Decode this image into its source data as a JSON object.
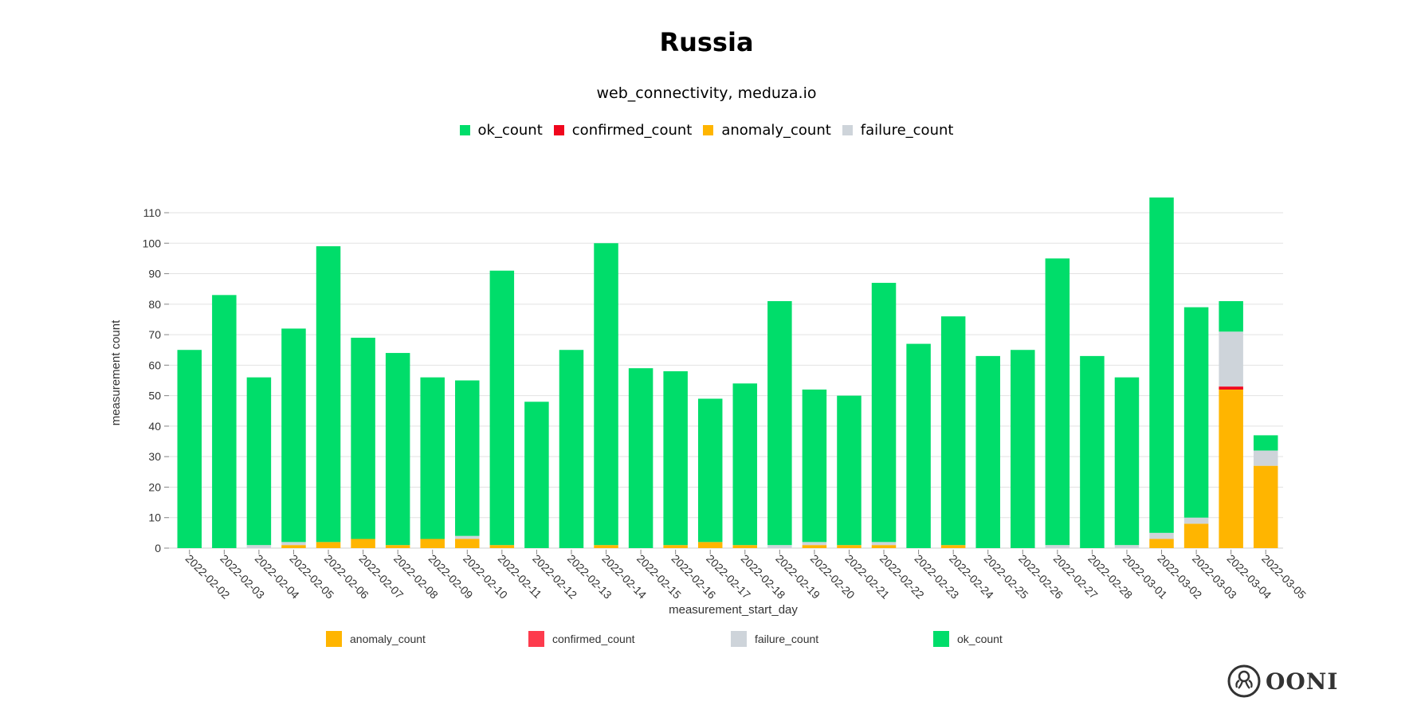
{
  "header": {
    "title": "Russia",
    "subtitle": "web_connectivity, meduza.io"
  },
  "top_legend": [
    {
      "label": "ok_count",
      "color": "#00dd6a"
    },
    {
      "label": "confirmed_count",
      "color": "#f0061d"
    },
    {
      "label": "anomaly_count",
      "color": "#ffb500"
    },
    {
      "label": "failure_count",
      "color": "#ced4da"
    }
  ],
  "logo": {
    "text": "OONI"
  },
  "chart_data": {
    "type": "bar",
    "stacked": true,
    "xlabel": "measurement_start_day",
    "ylabel": "measurement count",
    "ylim": [
      0,
      115
    ],
    "yticks": [
      0,
      10,
      20,
      30,
      40,
      50,
      60,
      70,
      80,
      90,
      100,
      110
    ],
    "grid": true,
    "legend_placement": "bottom",
    "categories": [
      "2022-02-02",
      "2022-02-03",
      "2022-02-04",
      "2022-02-05",
      "2022-02-06",
      "2022-02-07",
      "2022-02-08",
      "2022-02-09",
      "2022-02-10",
      "2022-02-11",
      "2022-02-12",
      "2022-02-13",
      "2022-02-14",
      "2022-02-15",
      "2022-02-16",
      "2022-02-17",
      "2022-02-18",
      "2022-02-19",
      "2022-02-20",
      "2022-02-21",
      "2022-02-22",
      "2022-02-23",
      "2022-02-24",
      "2022-02-25",
      "2022-02-26",
      "2022-02-27",
      "2022-02-28",
      "2022-03-01",
      "2022-03-02",
      "2022-03-03",
      "2022-03-04",
      "2022-03-05"
    ],
    "series": [
      {
        "name": "anomaly_count",
        "color": "#ffb500",
        "values": [
          0,
          0,
          0,
          1,
          2,
          3,
          1,
          3,
          3,
          1,
          0,
          0,
          1,
          0,
          1,
          2,
          1,
          0,
          1,
          1,
          1,
          0,
          1,
          0,
          0,
          0,
          0,
          0,
          3,
          8,
          52,
          27
        ]
      },
      {
        "name": "confirmed_count",
        "color": "#f0061d",
        "legend_color": "#fd3b4d",
        "values": [
          0,
          0,
          0,
          0,
          0,
          0,
          0,
          0,
          0,
          0,
          0,
          0,
          0,
          0,
          0,
          0,
          0,
          0,
          0,
          0,
          0,
          0,
          0,
          0,
          0,
          0,
          0,
          0,
          0,
          0,
          1,
          0
        ]
      },
      {
        "name": "failure_count",
        "color": "#ced4da",
        "values": [
          0,
          0,
          1,
          1,
          0,
          0,
          0,
          0,
          1,
          0,
          0,
          0,
          0,
          0,
          0,
          0,
          0,
          1,
          1,
          0,
          1,
          0,
          0,
          0,
          0,
          1,
          0,
          1,
          2,
          2,
          18,
          5
        ]
      },
      {
        "name": "ok_count",
        "color": "#00dd6a",
        "values": [
          65,
          83,
          55,
          70,
          97,
          66,
          63,
          53,
          51,
          90,
          48,
          65,
          99,
          59,
          57,
          47,
          53,
          80,
          50,
          49,
          85,
          67,
          75,
          63,
          65,
          94,
          63,
          55,
          110,
          69,
          10,
          5
        ]
      }
    ]
  }
}
